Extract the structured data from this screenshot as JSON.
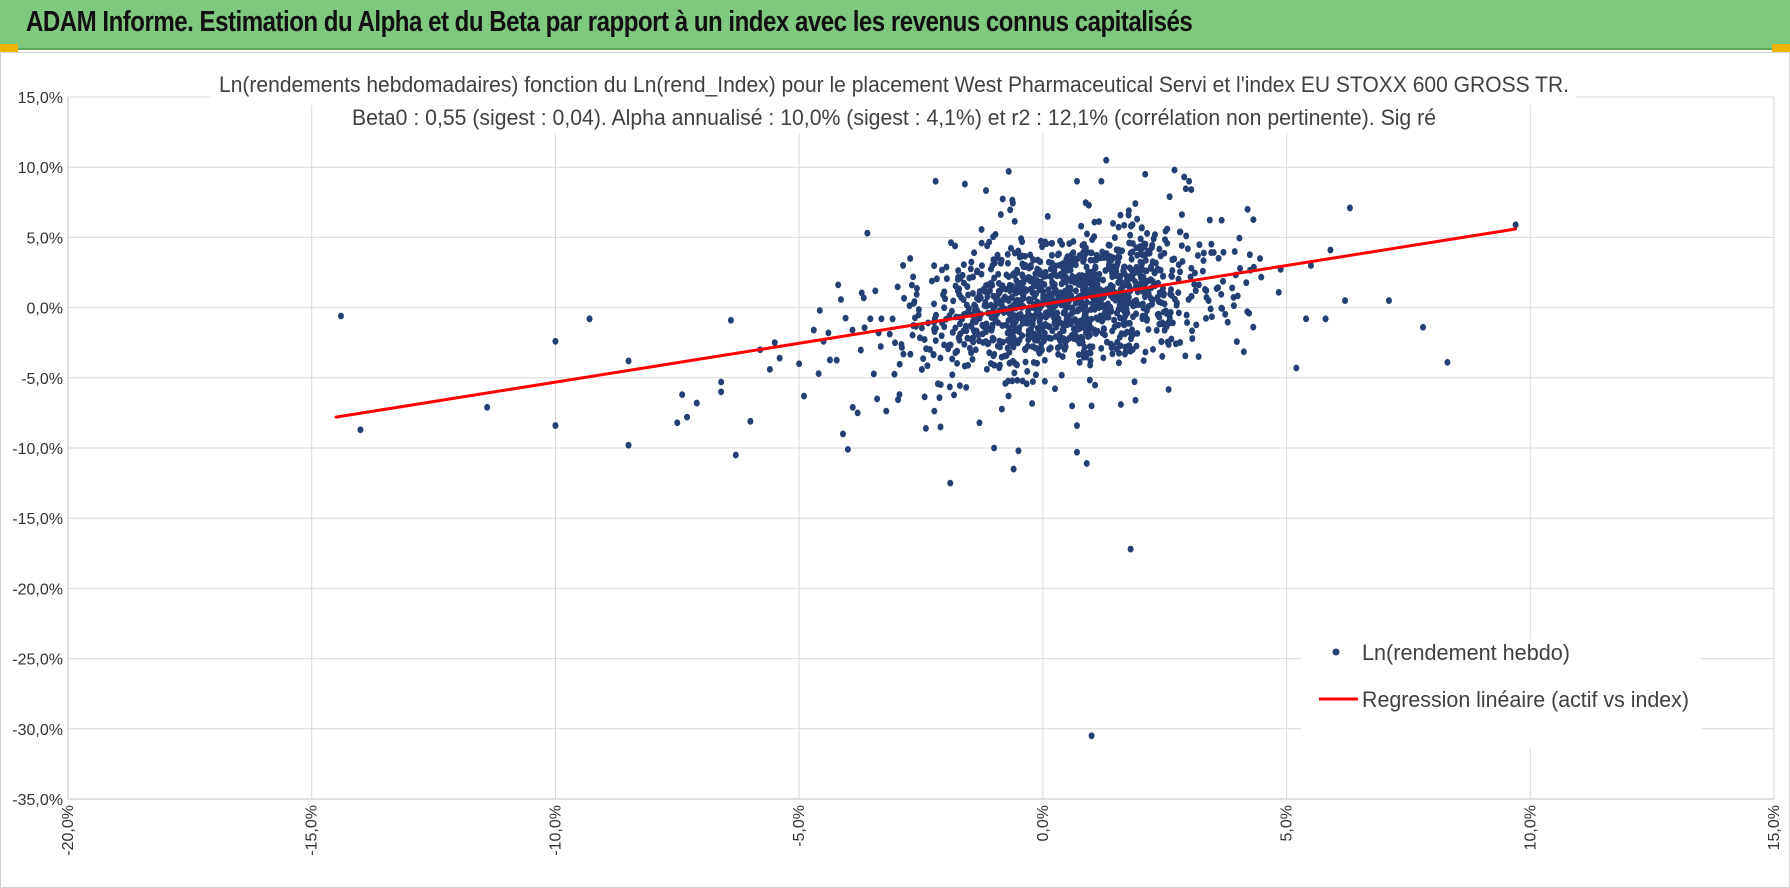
{
  "header": {
    "title": "ADAM Informe. Estimation du Alpha et du Beta par rapport à un index avec les revenus connus capitalisés"
  },
  "chart_data": {
    "type": "scatter",
    "title": "Ln(rendements hebdomadaires) fonction du Ln(rend_Index) pour le placement West Pharmaceutical Servi et l'index EU STOXX 600 GROSS TR.",
    "subtitle": "Beta0 : 0,55 (sigest : 0,04). Alpha annualisé : 10,0% (sigest : 4,1%) et r2 : 12,1% (corrélation non pertinente). Sig ré",
    "xlabel": "",
    "ylabel": "",
    "xlim": [
      -0.2,
      0.15
    ],
    "ylim": [
      -0.35,
      0.15
    ],
    "x_ticks": [
      "-20,0%",
      "-15,0%",
      "-10,0%",
      "-5,0%",
      "0,0%",
      "5,0%",
      "10,0%",
      "15,0%"
    ],
    "x_tick_values": [
      -0.2,
      -0.15,
      -0.1,
      -0.05,
      0.0,
      0.05,
      0.1,
      0.15
    ],
    "y_ticks": [
      "15,0%",
      "10,0%",
      "5,0%",
      "0,0%",
      "-5,0%",
      "-10,0%",
      "-15,0%",
      "-20,0%",
      "-25,0%",
      "-30,0%",
      "-35,0%"
    ],
    "y_tick_values": [
      0.15,
      0.1,
      0.05,
      0.0,
      -0.05,
      -0.1,
      -0.15,
      -0.2,
      -0.25,
      -0.3,
      -0.35
    ],
    "grid": true,
    "legend_position": "bottom-right",
    "series": [
      {
        "name": "Ln(rendement hebdo)",
        "type": "scatter",
        "color": "#243f73",
        "points": [
          [
            -0.144,
            -0.006
          ],
          [
            -0.14,
            -0.087
          ],
          [
            -0.114,
            -0.071
          ],
          [
            -0.1,
            -0.024
          ],
          [
            -0.1,
            -0.084
          ],
          [
            -0.093,
            -0.008
          ],
          [
            -0.085,
            -0.038
          ],
          [
            -0.085,
            -0.098
          ],
          [
            -0.075,
            -0.082
          ],
          [
            -0.074,
            -0.062
          ],
          [
            -0.073,
            -0.078
          ],
          [
            -0.071,
            -0.068
          ],
          [
            -0.066,
            -0.053
          ],
          [
            -0.066,
            -0.06
          ],
          [
            -0.064,
            -0.009
          ],
          [
            -0.063,
            -0.105
          ],
          [
            -0.06,
            -0.081
          ],
          [
            -0.058,
            -0.03
          ],
          [
            -0.056,
            -0.044
          ],
          [
            -0.055,
            -0.025
          ],
          [
            -0.054,
            -0.036
          ],
          [
            -0.05,
            -0.04
          ],
          [
            -0.049,
            -0.063
          ],
          [
            -0.047,
            -0.016
          ],
          [
            -0.046,
            -0.047
          ],
          [
            -0.045,
            -0.024
          ],
          [
            -0.044,
            -0.018
          ],
          [
            -0.041,
            -0.09
          ],
          [
            -0.04,
            -0.101
          ],
          [
            -0.039,
            -0.071
          ],
          [
            -0.038,
            -0.075
          ],
          [
            -0.036,
            0.053
          ],
          [
            -0.034,
            -0.065
          ],
          [
            -0.024,
            -0.086
          ],
          [
            -0.022,
            0.09
          ],
          [
            -0.021,
            -0.085
          ],
          [
            -0.019,
            -0.125
          ],
          [
            -0.016,
            0.088
          ],
          [
            -0.013,
            -0.082
          ],
          [
            -0.01,
            -0.1
          ],
          [
            -0.007,
            0.097
          ],
          [
            -0.006,
            -0.115
          ],
          [
            -0.005,
            -0.102
          ],
          [
            0.007,
            -0.084
          ],
          [
            0.006,
            -0.07
          ],
          [
            0.007,
            0.09
          ],
          [
            0.007,
            -0.103
          ],
          [
            0.009,
            -0.111
          ],
          [
            0.01,
            -0.07
          ],
          [
            0.01,
            -0.305
          ],
          [
            0.012,
            0.09
          ],
          [
            0.013,
            0.105
          ],
          [
            0.016,
            -0.069
          ],
          [
            0.018,
            -0.172
          ],
          [
            0.019,
            -0.066
          ],
          [
            0.021,
            0.095
          ],
          [
            0.027,
            0.098
          ],
          [
            0.029,
            0.093
          ],
          [
            0.03,
            0.09
          ],
          [
            0.042,
            0.07
          ],
          [
            0.052,
            -0.043
          ],
          [
            0.054,
            -0.008
          ],
          [
            0.055,
            0.03
          ],
          [
            0.058,
            -0.008
          ],
          [
            0.059,
            0.041
          ],
          [
            0.062,
            0.005
          ],
          [
            0.063,
            0.071
          ],
          [
            0.071,
            0.005
          ],
          [
            0.078,
            -0.014
          ],
          [
            0.083,
            -0.039
          ],
          [
            0.097,
            0.059
          ]
        ]
      },
      {
        "name": "Regression linéaire (actif vs index)",
        "type": "line",
        "color": "#ff0000",
        "points": [
          [
            -0.145,
            -0.078
          ],
          [
            0.097,
            0.056
          ]
        ]
      }
    ]
  }
}
